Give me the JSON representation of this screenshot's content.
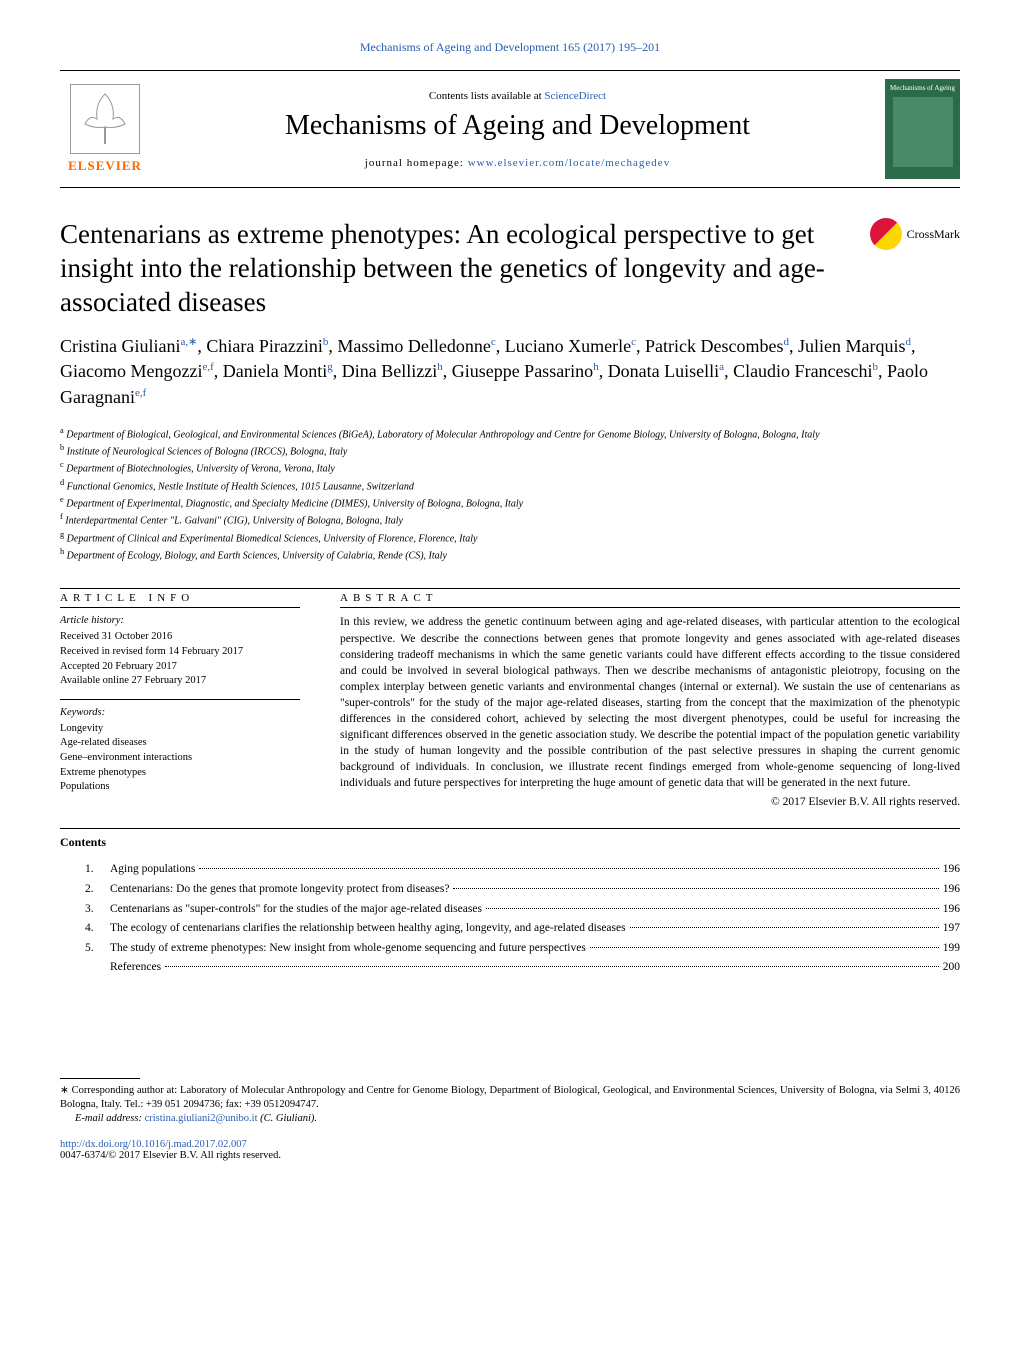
{
  "header": {
    "citation": "Mechanisms of Ageing and Development 165 (2017) 195–201",
    "contents_available": "Contents lists available at ",
    "sciencedirect": "ScienceDirect",
    "journal_name": "Mechanisms of Ageing and Development",
    "homepage_label": "journal homepage: ",
    "homepage_url": "www.elsevier.com/locate/mechagedev",
    "elsevier": "ELSEVIER",
    "cover_text": "Mechanisms of Ageing"
  },
  "crossmark": "CrossMark",
  "title": "Centenarians as extreme phenotypes: An ecological perspective to get insight into the relationship between the genetics of longevity and age-associated diseases",
  "authors_html": "Cristina Giuliani<sup>a,∗</sup>, Chiara Pirazzini<sup>b</sup>, Massimo Delledonne<sup>c</sup>, Luciano Xumerle<sup>c</sup>, Patrick Descombes<sup>d</sup>, Julien Marquis<sup>d</sup>, Giacomo Mengozzi<sup>e,f</sup>, Daniela Monti<sup>g</sup>, Dina Bellizzi<sup>h</sup>, Giuseppe Passarino<sup>h</sup>, Donata Luiselli<sup>a</sup>, Claudio Franceschi<sup>b</sup>, Paolo Garagnani<sup>e,f</sup>",
  "affiliations": [
    {
      "sup": "a",
      "text": " Department of Biological, Geological, and Environmental Sciences (BiGeA), Laboratory of Molecular Anthropology and Centre for Genome Biology, University of Bologna, Bologna, Italy"
    },
    {
      "sup": "b",
      "text": " Institute of Neurological Sciences of Bologna (IRCCS), Bologna, Italy"
    },
    {
      "sup": "c",
      "text": " Department of Biotechnologies, University of Verona, Verona, Italy"
    },
    {
      "sup": "d",
      "text": " Functional Genomics, Nestle Institute of Health Sciences, 1015 Lausanne, Switzerland"
    },
    {
      "sup": "e",
      "text": " Department of Experimental, Diagnostic, and Specialty Medicine (DIMES), University of Bologna, Bologna, Italy"
    },
    {
      "sup": "f",
      "text": " Interdepartmental Center \"L. Galvani\" (CIG), University of Bologna, Bologna, Italy"
    },
    {
      "sup": "g",
      "text": " Department of Clinical and Experimental Biomedical Sciences, University of Florence, Florence, Italy"
    },
    {
      "sup": "h",
      "text": " Department of Ecology, Biology, and Earth Sciences, University of Calabria, Rende (CS), Italy"
    }
  ],
  "info": {
    "heading": "article info",
    "history_label": "Article history:",
    "history": [
      "Received 31 October 2016",
      "Received in revised form 14 February 2017",
      "Accepted 20 February 2017",
      "Available online 27 February 2017"
    ],
    "keywords_label": "Keywords:",
    "keywords": [
      "Longevity",
      "Age-related diseases",
      "Gene–environment interactions",
      "Extreme phenotypes",
      "Populations"
    ]
  },
  "abstract": {
    "heading": "abstract",
    "body": "In this review, we address the genetic continuum between aging and age-related diseases, with particular attention to the ecological perspective. We describe the connections between genes that promote longevity and genes associated with age-related diseases considering tradeoff mechanisms in which the same genetic variants could have different effects according to the tissue considered and could be involved in several biological pathways. Then we describe mechanisms of antagonistic pleiotropy, focusing on the complex interplay between genetic variants and environmental changes (internal or external). We sustain the use of centenarians as \"super-controls\" for the study of the major age-related diseases, starting from the concept that the maximization of the phenotypic differences in the considered cohort, achieved by selecting the most divergent phenotypes, could be useful for increasing the significant differences observed in the genetic association study. We describe the potential impact of the population genetic variability in the study of human longevity and the possible contribution of the past selective pressures in shaping the current genomic background of individuals. In conclusion, we illustrate recent findings emerged from whole-genome sequencing of long-lived individuals and future perspectives for interpreting the huge amount of genetic data that will be generated in the next future.",
    "copyright": "© 2017 Elsevier B.V. All rights reserved."
  },
  "contents": {
    "heading": "Contents",
    "items": [
      {
        "num": "1.",
        "text": "Aging populations",
        "page": "196"
      },
      {
        "num": "2.",
        "text": "Centenarians: Do the genes that promote longevity protect from diseases?",
        "page": "196"
      },
      {
        "num": "3.",
        "text": "Centenarians as \"super-controls\" for the studies of the major age-related diseases",
        "page": "196"
      },
      {
        "num": "4.",
        "text": "The ecology of centenarians clarifies the relationship between healthy aging, longevity, and age-related diseases",
        "page": "197"
      },
      {
        "num": "5.",
        "text": "The study of extreme phenotypes: New insight from whole-genome sequencing and future perspectives",
        "page": "199"
      },
      {
        "num": "",
        "text": "References",
        "page": "200"
      }
    ]
  },
  "footer": {
    "corresponding": "∗ Corresponding author at: Laboratory of Molecular Anthropology and Centre for Genome Biology, Department of Biological, Geological, and Environmental Sciences, University of Bologna, via Selmi 3, 40126 Bologna, Italy. Tel.: +39 051 2094736; fax: +39 0512094747.",
    "email_label": "E-mail address: ",
    "email": "cristina.giuliani2@unibo.it",
    "email_suffix": " (C. Giuliani).",
    "doi": "http://dx.doi.org/10.1016/j.mad.2017.02.007",
    "issn": "0047-6374/© 2017 Elsevier B.V. All rights reserved."
  }
}
